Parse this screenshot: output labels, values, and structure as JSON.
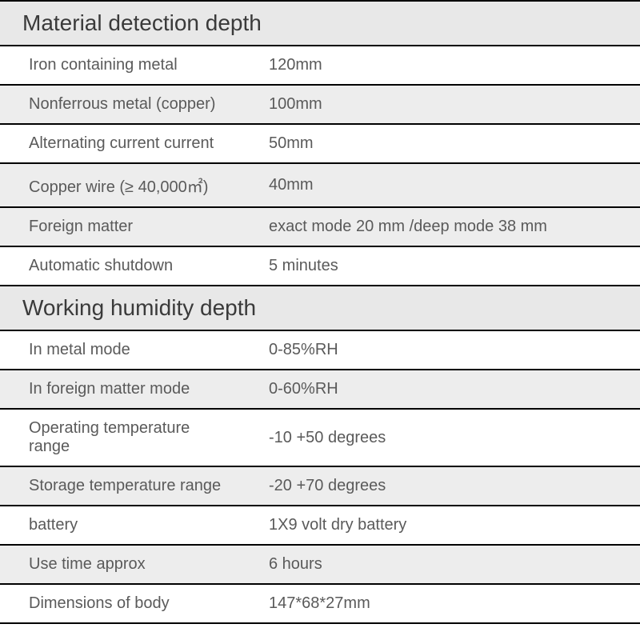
{
  "sections": [
    {
      "title": "Material detection depth",
      "rows": [
        {
          "label": "Iron containing metal",
          "value": "120mm",
          "alt": false
        },
        {
          "label": "Nonferrous metal (copper)",
          "value": "100mm",
          "alt": true
        },
        {
          "label": "Alternating current current",
          "value": "50mm",
          "alt": false
        },
        {
          "label": "Copper wire (≥ 40,000㎡)",
          "value": "40mm",
          "alt": true
        },
        {
          "label": "Foreign matter",
          "value": "exact mode 20 mm /deep mode 38 mm",
          "alt": true
        },
        {
          "label": "Automatic shutdown",
          "value": "5 minutes",
          "alt": false
        }
      ]
    },
    {
      "title": "Working humidity depth",
      "rows": [
        {
          "label": "In metal mode",
          "value": "0-85%RH",
          "alt": false
        },
        {
          "label": "In foreign matter mode",
          "value": "0-60%RH",
          "alt": true
        },
        {
          "label": "Operating temperature range",
          "value": "-10 +50 degrees",
          "alt": false
        },
        {
          "label": "Storage temperature range",
          "value": "-20 +70 degrees",
          "alt": true
        },
        {
          "label": "battery",
          "value": "1X9 volt dry battery",
          "alt": false
        },
        {
          "label": "Use time approx",
          "value": "6 hours",
          "alt": true
        },
        {
          "label": "Dimensions of body",
          "value": "147*68*27mm",
          "alt": false
        }
      ]
    }
  ],
  "style": {
    "header_bg": "#e8e8e8",
    "alt_bg": "#ededed",
    "plain_bg": "#ffffff",
    "border_color": "#000000",
    "text_color": "#5a5a5a",
    "header_text_color": "#3a3a3a",
    "header_fontsize": 28,
    "row_fontsize": 20,
    "label_col_width": 300
  }
}
